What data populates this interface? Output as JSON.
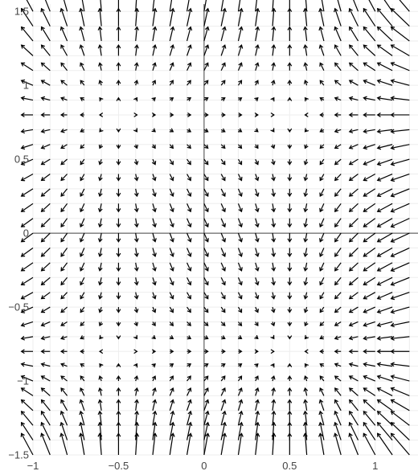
{
  "chart_data": {
    "type": "quiver",
    "title": "",
    "xlabel": "",
    "ylabel": "",
    "xlim": [
      -1.0,
      1.25
    ],
    "ylim": [
      -1.5,
      1.55
    ],
    "x_ticks": [
      -1,
      -0.5,
      0,
      0.5,
      1
    ],
    "x_tick_labels": [
      "−1",
      "−0.5",
      "0",
      "0.5",
      "1"
    ],
    "y_ticks": [
      -1.5,
      -1,
      -0.5,
      0,
      0.5,
      1,
      1.5
    ],
    "y_tick_labels": [
      "−1.5",
      "−1",
      "−0.5",
      "0",
      "0.5",
      "1",
      "1.5"
    ],
    "grid": true,
    "zero_lines": true,
    "field": {
      "equilibrium_x": [
        -0.5,
        0.5
      ],
      "equilibrium_y": [
        -0.8,
        0.8
      ],
      "u": "-(x + 0.5) * (x - 0.5)",
      "v": "(y + 0.8) * (y - 0.8)"
    },
    "grid_x": {
      "start": -1.0,
      "step": 0.1,
      "count": 23
    },
    "grid_y": {
      "start": -1.5,
      "step": 0.1,
      "count": 31
    },
    "arrow_color": "#000000",
    "grid_color": "#eeeeee",
    "zero_line_color": "#444444"
  }
}
